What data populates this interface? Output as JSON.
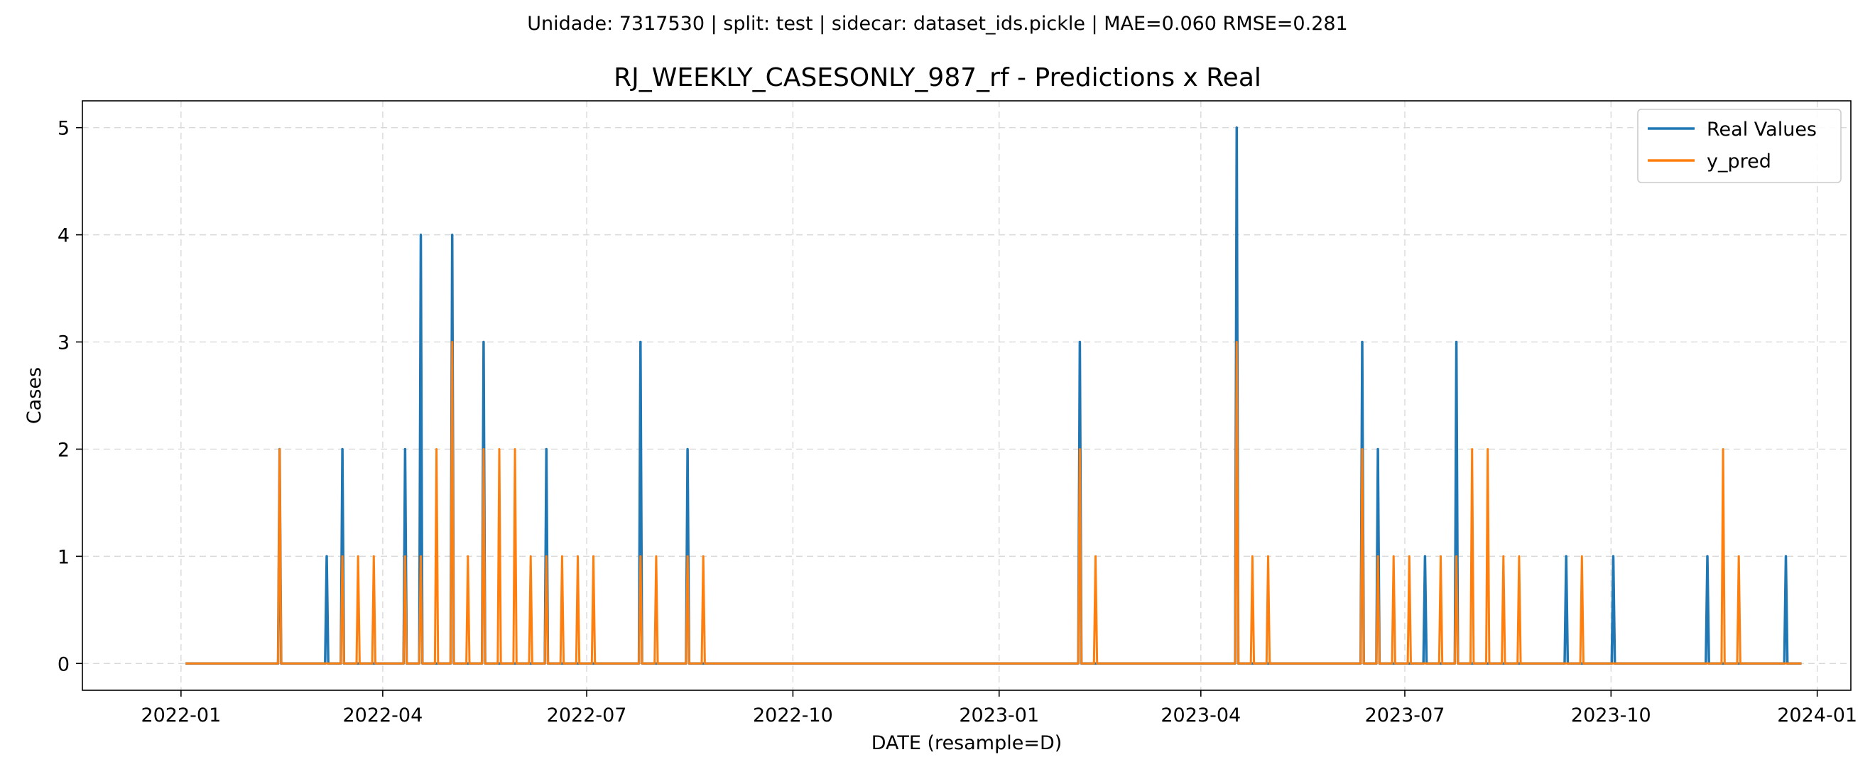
{
  "suptitle": "Unidade: 7317530 | split: test | sidecar: dataset_ids.pickle | MAE=0.060  RMSE=0.281",
  "colors": {
    "real": "#1f77b4",
    "pred": "#ff7f0e",
    "grid": "#d9d9d9"
  },
  "chart_data": {
    "type": "line",
    "title": "RJ_WEEKLY_CASESONLY_987_rf - Predictions x Real",
    "xlabel": "DATE (resample=D)",
    "ylabel": "Cases",
    "xlim": [
      "2021-11-18",
      "2024-01-16"
    ],
    "ylim": [
      -0.25,
      5.25
    ],
    "x_range": [
      "2022-01-03",
      "2023-12-25"
    ],
    "x_ticks": [
      "2022-01",
      "2022-04",
      "2022-07",
      "2022-10",
      "2023-01",
      "2023-04",
      "2023-07",
      "2023-10",
      "2024-01"
    ],
    "y_ticks": [
      0,
      1,
      2,
      3,
      4,
      5
    ],
    "grid": true,
    "legend_position": "upper right",
    "series": [
      {
        "name": "Real Values",
        "color": "#1f77b4",
        "baseline": 0,
        "peaks": [
          {
            "date": "2022-02-14",
            "value": 2
          },
          {
            "date": "2022-03-07",
            "value": 1
          },
          {
            "date": "2022-03-14",
            "value": 2
          },
          {
            "date": "2022-04-11",
            "value": 2
          },
          {
            "date": "2022-04-18",
            "value": 4
          },
          {
            "date": "2022-05-02",
            "value": 4
          },
          {
            "date": "2022-05-16",
            "value": 3
          },
          {
            "date": "2022-06-13",
            "value": 2
          },
          {
            "date": "2022-07-25",
            "value": 3
          },
          {
            "date": "2022-08-15",
            "value": 2
          },
          {
            "date": "2023-02-06",
            "value": 3
          },
          {
            "date": "2023-04-17",
            "value": 5
          },
          {
            "date": "2023-06-12",
            "value": 3
          },
          {
            "date": "2023-06-19",
            "value": 2
          },
          {
            "date": "2023-07-10",
            "value": 1
          },
          {
            "date": "2023-07-24",
            "value": 3
          },
          {
            "date": "2023-09-11",
            "value": 1
          },
          {
            "date": "2023-10-02",
            "value": 1
          },
          {
            "date": "2023-11-13",
            "value": 1
          },
          {
            "date": "2023-12-18",
            "value": 1
          }
        ]
      },
      {
        "name": "y_pred",
        "color": "#ff7f0e",
        "baseline": 0,
        "peaks": [
          {
            "date": "2022-02-14",
            "value": 2
          },
          {
            "date": "2022-03-14",
            "value": 1
          },
          {
            "date": "2022-03-21",
            "value": 1
          },
          {
            "date": "2022-03-28",
            "value": 1
          },
          {
            "date": "2022-04-11",
            "value": 1
          },
          {
            "date": "2022-04-18",
            "value": 1
          },
          {
            "date": "2022-04-25",
            "value": 2
          },
          {
            "date": "2022-05-02",
            "value": 3
          },
          {
            "date": "2022-05-09",
            "value": 1
          },
          {
            "date": "2022-05-16",
            "value": 2
          },
          {
            "date": "2022-05-23",
            "value": 2
          },
          {
            "date": "2022-05-30",
            "value": 2
          },
          {
            "date": "2022-06-06",
            "value": 1
          },
          {
            "date": "2022-06-13",
            "value": 1
          },
          {
            "date": "2022-06-20",
            "value": 1
          },
          {
            "date": "2022-06-27",
            "value": 1
          },
          {
            "date": "2022-07-04",
            "value": 1
          },
          {
            "date": "2022-07-25",
            "value": 1
          },
          {
            "date": "2022-08-01",
            "value": 1
          },
          {
            "date": "2022-08-15",
            "value": 1
          },
          {
            "date": "2022-08-22",
            "value": 1
          },
          {
            "date": "2023-02-06",
            "value": 2
          },
          {
            "date": "2023-02-13",
            "value": 1
          },
          {
            "date": "2023-04-17",
            "value": 3
          },
          {
            "date": "2023-04-24",
            "value": 1
          },
          {
            "date": "2023-05-01",
            "value": 1
          },
          {
            "date": "2023-06-12",
            "value": 2
          },
          {
            "date": "2023-06-19",
            "value": 1
          },
          {
            "date": "2023-06-26",
            "value": 1
          },
          {
            "date": "2023-07-03",
            "value": 1
          },
          {
            "date": "2023-07-17",
            "value": 1
          },
          {
            "date": "2023-07-24",
            "value": 1
          },
          {
            "date": "2023-07-31",
            "value": 2
          },
          {
            "date": "2023-08-07",
            "value": 2
          },
          {
            "date": "2023-08-14",
            "value": 1
          },
          {
            "date": "2023-08-21",
            "value": 1
          },
          {
            "date": "2023-09-18",
            "value": 1
          },
          {
            "date": "2023-11-20",
            "value": 2
          },
          {
            "date": "2023-11-27",
            "value": 1
          }
        ]
      }
    ]
  }
}
